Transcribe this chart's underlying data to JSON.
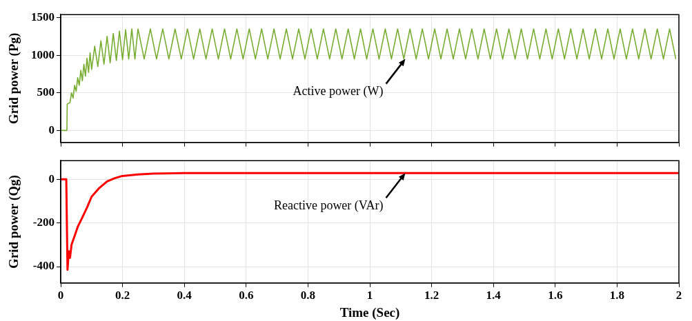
{
  "chart_data": [
    {
      "type": "line",
      "ylabel": "Grid power (Pg)",
      "xlim": [
        0,
        2
      ],
      "xticks": [
        0,
        0.2,
        0.4,
        0.6,
        0.8,
        1,
        1.2,
        1.4,
        1.6,
        1.8,
        2
      ],
      "ylim": [
        -160,
        1540
      ],
      "yticks": [
        0,
        500,
        1000,
        1500
      ],
      "grid": true,
      "tick_labels": "y",
      "annotations": [
        {
          "text": "Active power (W)",
          "x": 1.115,
          "y": 950
        }
      ],
      "series": [
        {
          "color": "#77ac30",
          "x": [
            0,
            0.02,
            0.021,
            0.03,
            0.035,
            0.04,
            0.045,
            0.05,
            0.055,
            0.06,
            0.065,
            0.07,
            0.075,
            0.08,
            0.085,
            0.09,
            0.095,
            0.1,
            0.11,
            0.12,
            0.13,
            0.14,
            0.15,
            0.16,
            0.17,
            0.18,
            0.19,
            0.2,
            0.21,
            0.22,
            0.23,
            0.24,
            0.25,
            0.27,
            0.29,
            0.31,
            0.33,
            0.35,
            0.37,
            0.39,
            0.41,
            0.43,
            0.45,
            0.47,
            0.49,
            0.51,
            0.53,
            0.55,
            0.57,
            0.59,
            0.61,
            0.63,
            0.65,
            0.67,
            0.69,
            0.71,
            0.73,
            0.75,
            0.77,
            0.79,
            0.81,
            0.83,
            0.85,
            0.87,
            0.89,
            0.91,
            0.93,
            0.95,
            0.97,
            0.99,
            1.01,
            1.03,
            1.05,
            1.07,
            1.09,
            1.11,
            1.13,
            1.15,
            1.17,
            1.19,
            1.21,
            1.23,
            1.25,
            1.27,
            1.29,
            1.31,
            1.33,
            1.35,
            1.37,
            1.39,
            1.41,
            1.43,
            1.45,
            1.47,
            1.49,
            1.51,
            1.53,
            1.55,
            1.57,
            1.59,
            1.61,
            1.63,
            1.65,
            1.67,
            1.69,
            1.71,
            1.73,
            1.75,
            1.77,
            1.79,
            1.81,
            1.83,
            1.85,
            1.87,
            1.89,
            1.91,
            1.93,
            1.95,
            1.97,
            1.99
          ],
          "values": [
            0,
            0,
            350,
            370,
            500,
            430,
            600,
            520,
            700,
            600,
            800,
            660,
            880,
            720,
            960,
            770,
            1030,
            810,
            1120,
            850,
            1190,
            880,
            1250,
            900,
            1290,
            930,
            1320,
            940,
            1340,
            950,
            1350,
            950,
            1350,
            950,
            1350,
            950,
            1350,
            950,
            1350,
            950,
            1350,
            950,
            1350,
            950,
            1350,
            950,
            1350,
            950,
            1350,
            950,
            1350,
            950,
            1350,
            950,
            1350,
            950,
            1350,
            950,
            1350,
            950,
            1350,
            950,
            1350,
            950,
            1350,
            950,
            1350,
            950,
            1350,
            950,
            1350,
            950,
            1350,
            950,
            1350,
            950,
            1350,
            950,
            1350,
            950,
            1350,
            950,
            1350,
            950,
            1350,
            950,
            1350,
            950,
            1350,
            950,
            1350,
            950,
            1350,
            950,
            1350,
            950,
            1350,
            950,
            1350,
            950,
            1350,
            950,
            1350,
            950,
            1350,
            950,
            1350,
            950,
            1350,
            950,
            1350,
            950,
            1350,
            950,
            1350,
            950,
            1350,
            950,
            1350,
            950
          ]
        }
      ]
    },
    {
      "type": "line",
      "xlabel": "Time (Sec)",
      "ylabel": "Grid power (Qg)",
      "xlim": [
        0,
        2
      ],
      "xticks": [
        0,
        0.2,
        0.4,
        0.6,
        0.8,
        1,
        1.2,
        1.4,
        1.6,
        1.8,
        2
      ],
      "ylim": [
        -475,
        85
      ],
      "yticks": [
        -400,
        -200,
        0
      ],
      "grid": true,
      "annotations": [
        {
          "text": "Reactive power (VAr)",
          "x": 1.115,
          "y": 28
        }
      ],
      "series": [
        {
          "color": "#ff0000",
          "x": [
            0,
            0.018,
            0.022,
            0.026,
            0.03,
            0.035,
            0.045,
            0.056,
            0.07,
            0.085,
            0.1,
            0.125,
            0.15,
            0.175,
            0.2,
            0.25,
            0.3,
            0.4,
            2
          ],
          "values": [
            0,
            0,
            -415,
            -330,
            -360,
            -300,
            -260,
            -215,
            -175,
            -130,
            -80,
            -40,
            -10,
            5,
            15,
            22,
            26,
            28,
            28
          ]
        }
      ]
    }
  ]
}
